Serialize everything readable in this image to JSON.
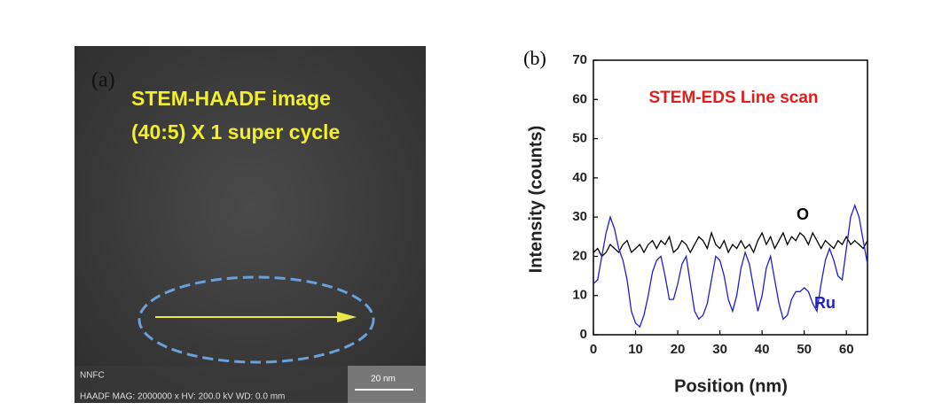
{
  "panel_a": {
    "label": "(a)",
    "caption_line1": "STEM-HAADF image",
    "caption_line2": "(40:5) X 1 super cycle",
    "footer_lab": "NNFC",
    "footer_info": "HAADF MAG: 2000000 x HV: 200.0 kV WD: 0.0 mm",
    "scale_bar": "20 nm"
  },
  "chart_data": {
    "type": "line",
    "panel_label": "(b)",
    "annotation": "STEM-EDS Line scan",
    "x_label": "Position (nm)",
    "y_label": "Intensity (counts)",
    "xlim": [
      0,
      65
    ],
    "ylim": [
      0,
      70
    ],
    "xticks": [
      0,
      10,
      20,
      30,
      40,
      50,
      60
    ],
    "yticks": [
      0,
      10,
      20,
      30,
      40,
      50,
      60,
      70
    ],
    "x": [
      0,
      1,
      2,
      3,
      4,
      5,
      6,
      7,
      8,
      9,
      10,
      11,
      12,
      13,
      14,
      15,
      16,
      17,
      18,
      19,
      20,
      21,
      22,
      23,
      24,
      25,
      26,
      27,
      28,
      29,
      30,
      31,
      32,
      33,
      34,
      35,
      36,
      37,
      38,
      39,
      40,
      41,
      42,
      43,
      44,
      45,
      46,
      47,
      48,
      49,
      50,
      51,
      52,
      53,
      54,
      55,
      56,
      57,
      58,
      59,
      60,
      61,
      62,
      63,
      64,
      65
    ],
    "series": [
      {
        "name": "O",
        "color": "#000000",
        "values": [
          21,
          22,
          20,
          21,
          23,
          22,
          21,
          23,
          24,
          21,
          22,
          23,
          21,
          23,
          24,
          22,
          24,
          23,
          25,
          21,
          22,
          24,
          23,
          21,
          23,
          25,
          24,
          22,
          26,
          23,
          22,
          24,
          21,
          23,
          22,
          24,
          22,
          23,
          21,
          24,
          26,
          23,
          25,
          22,
          24,
          26,
          23,
          25,
          24,
          26,
          25,
          23,
          26,
          24,
          22,
          24,
          23,
          22,
          24,
          23,
          25,
          23,
          24,
          23,
          22,
          24
        ]
      },
      {
        "name": "Ru",
        "color": "#1f1fd0",
        "values": [
          13,
          14,
          20,
          26,
          30,
          27,
          22,
          19,
          14,
          6,
          3,
          2,
          5,
          10,
          16,
          19,
          20,
          15,
          9,
          9,
          13,
          18,
          20,
          13,
          6,
          4,
          5,
          8,
          14,
          20,
          19,
          15,
          9,
          6,
          10,
          17,
          21,
          18,
          12,
          6,
          10,
          17,
          20,
          14,
          8,
          4,
          5,
          9,
          11,
          11,
          12,
          11,
          8,
          6,
          13,
          19,
          22,
          19,
          15,
          14,
          22,
          30,
          33,
          30,
          24,
          18
        ]
      }
    ]
  }
}
